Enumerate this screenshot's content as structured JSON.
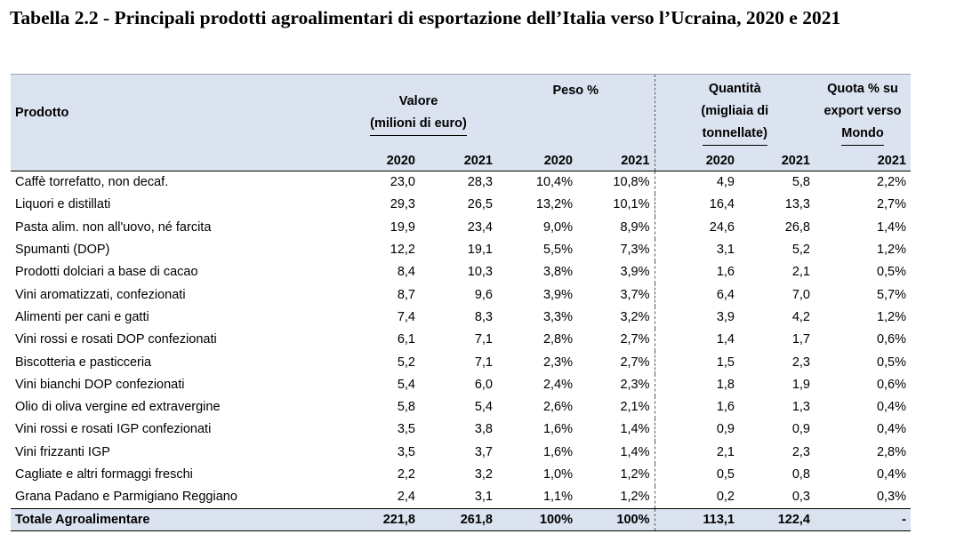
{
  "title": "Tabella 2.2 - Principali prodotti agroalimentari di esportazione dell’Italia verso l’Ucraina, 2020 e 2021",
  "header": {
    "prodotto": "Prodotto",
    "valore_line1": "Valore",
    "valore_line2": "(milioni di euro)",
    "peso": "Peso %",
    "quantita_line1": "Quantità",
    "quantita_line2": "(migliaia di",
    "quantita_line3": "tonnellate)",
    "quota_line1": "Quota % su",
    "quota_line2": "export verso",
    "quota_line3": "Mondo",
    "years": [
      "2020",
      "2021",
      "2020",
      "2021",
      "2020",
      "2021",
      "2021"
    ]
  },
  "rows": [
    {
      "name": "Caffè torrefatto, non decaf.",
      "v2020": "23,0",
      "v2021": "28,3",
      "p2020": "10,4%",
      "p2021": "10,8%",
      "q2020": "4,9",
      "q2021": "5,8",
      "quota": "2,2%"
    },
    {
      "name": "Liquori e distillati",
      "v2020": "29,3",
      "v2021": "26,5",
      "p2020": "13,2%",
      "p2021": "10,1%",
      "q2020": "16,4",
      "q2021": "13,3",
      "quota": "2,7%"
    },
    {
      "name": "Pasta alim. non all'uovo, né farcita",
      "v2020": "19,9",
      "v2021": "23,4",
      "p2020": "9,0%",
      "p2021": "8,9%",
      "q2020": "24,6",
      "q2021": "26,8",
      "quota": "1,4%"
    },
    {
      "name": "Spumanti (DOP)",
      "v2020": "12,2",
      "v2021": "19,1",
      "p2020": "5,5%",
      "p2021": "7,3%",
      "q2020": "3,1",
      "q2021": "5,2",
      "quota": "1,2%"
    },
    {
      "name": "Prodotti dolciari a base di cacao",
      "v2020": "8,4",
      "v2021": "10,3",
      "p2020": "3,8%",
      "p2021": "3,9%",
      "q2020": "1,6",
      "q2021": "2,1",
      "quota": "0,5%"
    },
    {
      "name": "Vini aromatizzati, confezionati",
      "v2020": "8,7",
      "v2021": "9,6",
      "p2020": "3,9%",
      "p2021": "3,7%",
      "q2020": "6,4",
      "q2021": "7,0",
      "quota": "5,7%"
    },
    {
      "name": "Alimenti per cani e gatti",
      "v2020": "7,4",
      "v2021": "8,3",
      "p2020": "3,3%",
      "p2021": "3,2%",
      "q2020": "3,9",
      "q2021": "4,2",
      "quota": "1,2%"
    },
    {
      "name": "Vini rossi e rosati DOP confezionati",
      "v2020": "6,1",
      "v2021": "7,1",
      "p2020": "2,8%",
      "p2021": "2,7%",
      "q2020": "1,4",
      "q2021": "1,7",
      "quota": "0,6%"
    },
    {
      "name": "Biscotteria e pasticceria",
      "v2020": "5,2",
      "v2021": "7,1",
      "p2020": "2,3%",
      "p2021": "2,7%",
      "q2020": "1,5",
      "q2021": "2,3",
      "quota": "0,5%"
    },
    {
      "name": "Vini bianchi DOP confezionati",
      "v2020": "5,4",
      "v2021": "6,0",
      "p2020": "2,4%",
      "p2021": "2,3%",
      "q2020": "1,8",
      "q2021": "1,9",
      "quota": "0,6%"
    },
    {
      "name": "Olio di oliva vergine ed extravergine",
      "v2020": "5,8",
      "v2021": "5,4",
      "p2020": "2,6%",
      "p2021": "2,1%",
      "q2020": "1,6",
      "q2021": "1,3",
      "quota": "0,4%"
    },
    {
      "name": "Vini rossi e rosati IGP confezionati",
      "v2020": "3,5",
      "v2021": "3,8",
      "p2020": "1,6%",
      "p2021": "1,4%",
      "q2020": "0,9",
      "q2021": "0,9",
      "quota": "0,4%"
    },
    {
      "name": "Vini frizzanti IGP",
      "v2020": "3,5",
      "v2021": "3,7",
      "p2020": "1,6%",
      "p2021": "1,4%",
      "q2020": "2,1",
      "q2021": "2,3",
      "quota": "2,8%"
    },
    {
      "name": "Cagliate e altri formaggi freschi",
      "v2020": "2,2",
      "v2021": "3,2",
      "p2020": "1,0%",
      "p2021": "1,2%",
      "q2020": "0,5",
      "q2021": "0,8",
      "quota": "0,4%"
    },
    {
      "name": "Grana Padano e Parmigiano Reggiano",
      "v2020": "2,4",
      "v2021": "3,1",
      "p2020": "1,1%",
      "p2021": "1,2%",
      "q2020": "0,2",
      "q2021": "0,3",
      "quota": "0,3%"
    }
  ],
  "total": {
    "name": "Totale Agroalimentare",
    "v2020": "221,8",
    "v2021": "261,8",
    "p2020": "100%",
    "p2021": "100%",
    "q2020": "113,1",
    "q2021": "122,4",
    "quota": "-"
  }
}
